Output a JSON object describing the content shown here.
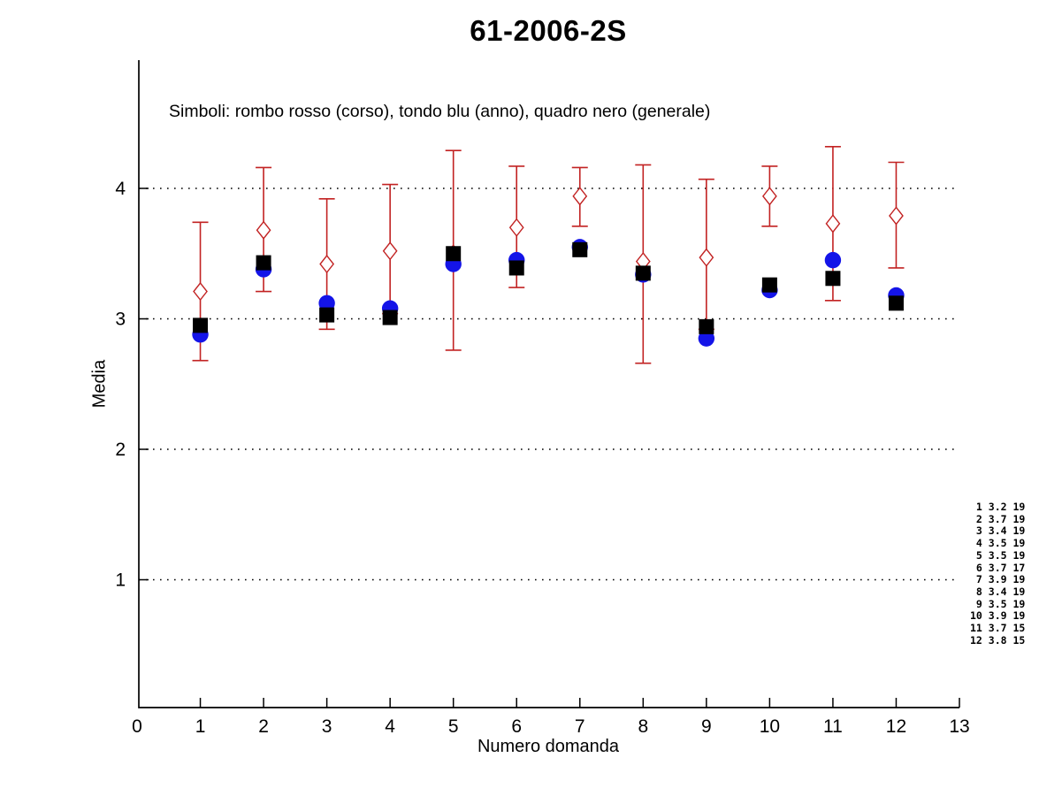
{
  "title": "61-2006-2S",
  "subtitle": "Simboli: rombo rosso (corso), tondo blu (anno), quadro nero (generale)",
  "chart_data": {
    "type": "scatter",
    "title": "61-2006-2S",
    "subtitle": "Simboli: rombo rosso (corso), tondo blu (anno), quadro nero (generale)",
    "xlabel": "Numero domanda",
    "ylabel": "Media",
    "xlim": [
      0,
      13
    ],
    "ylim": [
      0,
      5
    ],
    "xticks": [
      0,
      1,
      2,
      3,
      4,
      5,
      6,
      7,
      8,
      9,
      10,
      11,
      12,
      13
    ],
    "yticks": [
      1,
      2,
      3,
      4
    ],
    "grid": "horizontal dotted lines at each y tick",
    "legend_position": "text note inside plot, top-left",
    "x": [
      1,
      2,
      3,
      4,
      5,
      6,
      7,
      8,
      9,
      10,
      11,
      12
    ],
    "series": [
      {
        "name": "corso (rombo rosso)",
        "marker": "open-diamond",
        "color": "#c22222",
        "values": [
          3.21,
          3.68,
          3.42,
          3.52,
          3.5,
          3.7,
          3.94,
          3.44,
          3.47,
          3.94,
          3.73,
          3.79
        ],
        "err_top": [
          3.74,
          4.16,
          3.92,
          4.03,
          4.29,
          4.17,
          4.16,
          4.18,
          4.07,
          4.17,
          4.32,
          4.2
        ],
        "err_bottom": [
          2.68,
          3.21,
          2.92,
          3.04,
          2.76,
          3.24,
          3.71,
          2.66,
          2.92,
          3.71,
          3.14,
          3.39
        ]
      },
      {
        "name": "anno (tondo blu)",
        "marker": "filled-circle",
        "color": "#1414e8",
        "values": [
          2.88,
          3.38,
          3.12,
          3.08,
          3.42,
          3.45,
          3.55,
          3.34,
          2.85,
          3.22,
          3.45,
          3.18
        ]
      },
      {
        "name": "generale (quadro nero)",
        "marker": "filled-square",
        "color": "#000000",
        "values": [
          2.95,
          3.43,
          3.03,
          3.01,
          3.5,
          3.39,
          3.53,
          3.35,
          2.94,
          3.26,
          3.31,
          3.12
        ]
      }
    ],
    "side_table": [
      [
        1,
        "3.2",
        19
      ],
      [
        2,
        "3.7",
        19
      ],
      [
        3,
        "3.4",
        19
      ],
      [
        4,
        "3.5",
        19
      ],
      [
        5,
        "3.5",
        19
      ],
      [
        6,
        "3.7",
        17
      ],
      [
        7,
        "3.9",
        19
      ],
      [
        8,
        "3.4",
        19
      ],
      [
        9,
        "3.5",
        19
      ],
      [
        10,
        "3.9",
        19
      ],
      [
        11,
        "3.7",
        15
      ],
      [
        12,
        "3.8",
        15
      ]
    ]
  }
}
